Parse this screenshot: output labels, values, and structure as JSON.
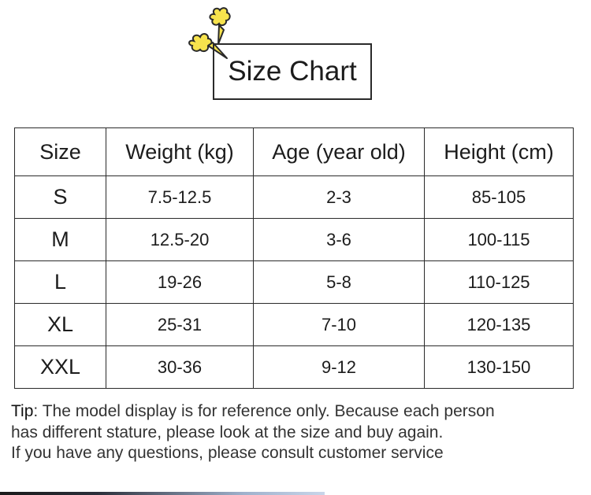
{
  "header": {
    "title": "Size Chart"
  },
  "table": {
    "headers": [
      "Size",
      "Weight (kg)",
      "Age (year old)",
      "Height (cm)"
    ],
    "rows": [
      [
        "S",
        "7.5-12.5",
        "2-3",
        "85-105"
      ],
      [
        "M",
        "12.5-20",
        "3-6",
        "100-115"
      ],
      [
        "L",
        "19-26",
        "5-8",
        "110-125"
      ],
      [
        "XL",
        "25-31",
        "7-10",
        "120-135"
      ],
      [
        "XXL",
        "30-36",
        "9-12",
        "130-150"
      ]
    ]
  },
  "tip": {
    "label": "Tip",
    "separator": ": ",
    "line1": "The model display is for reference only. Because each person",
    "line2": "has different stature, please look at the size and buy again.",
    "line3": "If you have any questions, please consult customer service"
  },
  "colors": {
    "deco_fill": "#f7e34d",
    "deco_stroke": "#2a2a2a",
    "border": "#2a2a2a"
  },
  "icons": {
    "decoration": "puff-cloud-icon"
  }
}
